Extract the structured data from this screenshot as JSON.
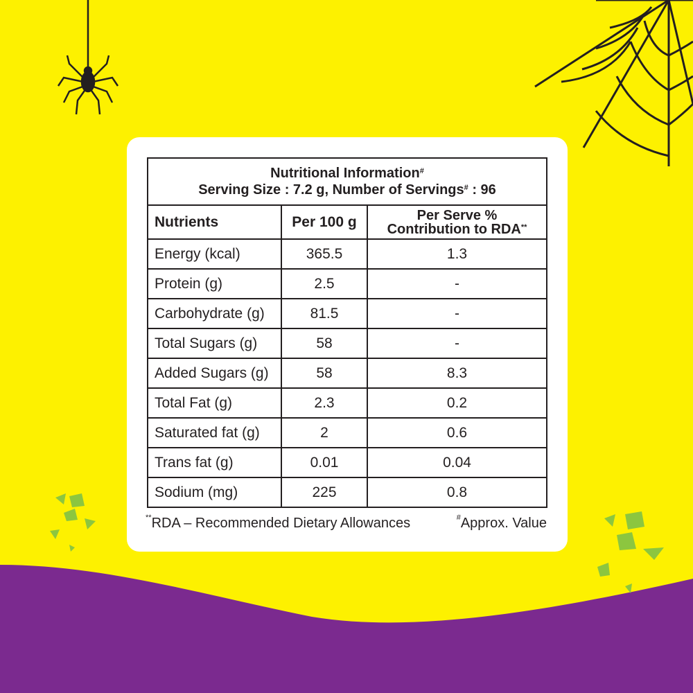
{
  "colors": {
    "background": "#fdf100",
    "wave": "#7b2a8f",
    "card": "#ffffff",
    "flakes": "#8cc63f"
  },
  "decor": {
    "icons": [
      "spider-icon",
      "spider-web-icon",
      "green-flakes-icon"
    ]
  },
  "table": {
    "title": "Nutritional Information",
    "title_mark": "#",
    "serving_prefix": "Serving Size : 7.2 g, Number of Servings",
    "serving_mark": "#",
    "serving_suffix": " : 96",
    "headers": {
      "nutrients": "Nutrients",
      "per100": "Per 100 g",
      "rda_line1": "Per Serve %",
      "rda_line2": "Contribution to RDA",
      "rda_mark": "**"
    },
    "rows": [
      {
        "nutrient": "Energy (kcal)",
        "per100": "365.5",
        "rda": "1.3"
      },
      {
        "nutrient": "Protein (g)",
        "per100": "2.5",
        "rda": "-"
      },
      {
        "nutrient": "Carbohydrate (g)",
        "per100": "81.5",
        "rda": "-"
      },
      {
        "nutrient": "Total Sugars (g)",
        "per100": "58",
        "rda": "-"
      },
      {
        "nutrient": "Added Sugars (g)",
        "per100": "58",
        "rda": "8.3"
      },
      {
        "nutrient": "Total Fat (g)",
        "per100": "2.3",
        "rda": "0.2"
      },
      {
        "nutrient": "Saturated fat (g)",
        "per100": "2",
        "rda": "0.6"
      },
      {
        "nutrient": "Trans fat (g)",
        "per100": "0.01",
        "rda": "0.04"
      },
      {
        "nutrient": "Sodium (mg)",
        "per100": "225",
        "rda": "0.8"
      }
    ]
  },
  "footnotes": {
    "rda_mark": "**",
    "rda": "RDA – Recommended Dietary Allowances",
    "approx_mark": "#",
    "approx": "Approx. Value"
  }
}
